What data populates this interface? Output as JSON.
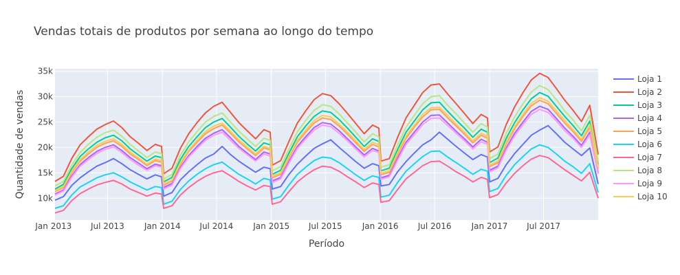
{
  "chart_data": {
    "type": "line",
    "title": "Vendas totais de produtos por semana ao longo do tempo",
    "xlabel": "Período",
    "ylabel": "Quantidade de vendas",
    "x_range": [
      "2013-01-06",
      "2017-12-31"
    ],
    "ylim": [
      5700,
      35500
    ],
    "x_ticks": [
      {
        "label": "Jan 2013",
        "date": "2013-01-01"
      },
      {
        "label": "Jul 2013",
        "date": "2013-07-01"
      },
      {
        "label": "Jan 2014",
        "date": "2014-01-01"
      },
      {
        "label": "Jul 2014",
        "date": "2014-07-01"
      },
      {
        "label": "Jan 2015",
        "date": "2015-01-01"
      },
      {
        "label": "Jul 2015",
        "date": "2015-07-01"
      },
      {
        "label": "Jan 2016",
        "date": "2016-01-01"
      },
      {
        "label": "Jul 2016",
        "date": "2016-07-01"
      },
      {
        "label": "Jan 2017",
        "date": "2017-01-01"
      },
      {
        "label": "Jul 2017",
        "date": "2017-07-01"
      }
    ],
    "y_ticks": [
      {
        "label": "10k",
        "value": 10000
      },
      {
        "label": "15k",
        "value": 15000
      },
      {
        "label": "20k",
        "value": 20000
      },
      {
        "label": "25k",
        "value": 25000
      },
      {
        "label": "30k",
        "value": 30000
      },
      {
        "label": "35k",
        "value": 35000
      }
    ],
    "grid": true,
    "legend_position": "right",
    "x_frequency": "weekly",
    "x": [
      "2013-01-06",
      "2013-02-03",
      "2013-03-03",
      "2013-03-31",
      "2013-04-28",
      "2013-05-26",
      "2013-06-23",
      "2013-07-21",
      "2013-08-18",
      "2013-09-15",
      "2013-10-13",
      "2013-11-10",
      "2013-12-08",
      "2013-12-29",
      "2014-01-05",
      "2014-02-02",
      "2014-03-02",
      "2014-03-30",
      "2014-04-27",
      "2014-05-25",
      "2014-06-22",
      "2014-07-20",
      "2014-08-17",
      "2014-09-14",
      "2014-10-12",
      "2014-11-09",
      "2014-12-07",
      "2014-12-28",
      "2015-01-04",
      "2015-02-01",
      "2015-03-01",
      "2015-03-29",
      "2015-04-26",
      "2015-05-24",
      "2015-06-21",
      "2015-07-19",
      "2015-08-16",
      "2015-09-13",
      "2015-10-11",
      "2015-11-08",
      "2015-12-06",
      "2015-12-27",
      "2016-01-03",
      "2016-01-31",
      "2016-02-28",
      "2016-03-27",
      "2016-04-24",
      "2016-05-22",
      "2016-06-19",
      "2016-07-17",
      "2016-08-14",
      "2016-09-11",
      "2016-10-09",
      "2016-11-06",
      "2016-12-04",
      "2016-12-25",
      "2017-01-01",
      "2017-01-29",
      "2017-02-26",
      "2017-03-26",
      "2017-04-23",
      "2017-05-21",
      "2017-06-18",
      "2017-07-16",
      "2017-08-13",
      "2017-09-10",
      "2017-10-08",
      "2017-11-05",
      "2017-12-03",
      "2017-12-31"
    ],
    "series": [
      {
        "name": "Loja 1",
        "color": "#636efa",
        "values": [
          9600,
          10300,
          12500,
          14000,
          15200,
          16300,
          17000,
          17800,
          16800,
          15600,
          14700,
          13800,
          14600,
          14200,
          10400,
          11100,
          13600,
          15200,
          16600,
          17900,
          18700,
          20200,
          18600,
          17300,
          16200,
          15100,
          16100,
          15800,
          11800,
          12300,
          14700,
          16700,
          18300,
          19800,
          20700,
          21500,
          20000,
          18600,
          17200,
          15900,
          16800,
          16400,
          12400,
          12700,
          15200,
          17200,
          18900,
          20500,
          21500,
          23000,
          21600,
          20200,
          18900,
          17600,
          18600,
          18100,
          13200,
          13900,
          16600,
          18800,
          20600,
          22400,
          23400,
          24300,
          22700,
          21000,
          19700,
          18400,
          19900,
          12800
        ]
      },
      {
        "name": "Loja 2",
        "color": "#ef553b",
        "values": [
          13300,
          14300,
          17800,
          20500,
          22100,
          23600,
          24500,
          25200,
          23900,
          22100,
          20800,
          19400,
          20600,
          20200,
          14800,
          15900,
          19800,
          22700,
          24900,
          26800,
          28100,
          28900,
          26900,
          24900,
          23300,
          21700,
          23500,
          23000,
          16500,
          17400,
          21200,
          24800,
          27200,
          29400,
          30600,
          30200,
          28600,
          26700,
          24700,
          22700,
          24400,
          23800,
          17300,
          17800,
          22000,
          25800,
          28300,
          30800,
          32300,
          32500,
          30500,
          28600,
          26700,
          24700,
          26500,
          25800,
          19100,
          20100,
          24500,
          28000,
          30800,
          33300,
          34600,
          33800,
          31600,
          29300,
          27300,
          25100,
          28300,
          18600
        ]
      },
      {
        "name": "Loja 3",
        "color": "#00cc96",
        "values": [
          11800,
          12700,
          15800,
          18200,
          19700,
          21000,
          21900,
          22400,
          21300,
          19700,
          18500,
          17300,
          18300,
          18000,
          13200,
          14100,
          17600,
          20200,
          22100,
          23900,
          25000,
          25700,
          24000,
          22200,
          20700,
          19300,
          20900,
          20500,
          14700,
          15500,
          18900,
          22100,
          24200,
          26100,
          27200,
          26900,
          25500,
          23800,
          22000,
          20200,
          21700,
          21200,
          15400,
          15900,
          19600,
          23000,
          25200,
          27400,
          28800,
          28900,
          27100,
          25400,
          23800,
          22000,
          23600,
          23000,
          17000,
          17900,
          21800,
          24900,
          27400,
          29600,
          30800,
          30100,
          28100,
          26100,
          24300,
          22300,
          25200,
          16600
        ]
      },
      {
        "name": "Loja 4",
        "color": "#ab63fa",
        "values": [
          10800,
          11600,
          14400,
          16600,
          18000,
          19200,
          20000,
          20500,
          19400,
          18000,
          16900,
          15800,
          16700,
          16400,
          12100,
          12900,
          16100,
          18400,
          20200,
          21800,
          22800,
          23500,
          21900,
          20200,
          18900,
          17600,
          19100,
          18700,
          13400,
          14100,
          17300,
          20200,
          22100,
          23900,
          24900,
          24600,
          23300,
          21700,
          20100,
          18500,
          19800,
          19300,
          14000,
          14500,
          17900,
          21000,
          23000,
          25000,
          26300,
          26400,
          24800,
          23200,
          21700,
          20100,
          21600,
          21000,
          15500,
          16300,
          19900,
          22800,
          25000,
          27100,
          28100,
          27500,
          25700,
          23800,
          22200,
          20400,
          23000,
          15100
        ]
      },
      {
        "name": "Loja 5",
        "color": "#ffa15a",
        "values": [
          11300,
          12100,
          15000,
          17300,
          18700,
          20000,
          20800,
          21300,
          20200,
          18700,
          17600,
          16400,
          17400,
          17100,
          12500,
          13400,
          16700,
          19200,
          21000,
          22700,
          23700,
          24400,
          22800,
          21100,
          19700,
          18400,
          19900,
          19500,
          14000,
          14700,
          18000,
          21000,
          23000,
          24800,
          25800,
          25500,
          24200,
          22600,
          20900,
          19200,
          20600,
          20100,
          14600,
          15100,
          18600,
          21800,
          24000,
          26000,
          27400,
          27500,
          25800,
          24200,
          22600,
          20900,
          22400,
          21800,
          16200,
          17000,
          20700,
          23700,
          26100,
          28200,
          29300,
          28600,
          26700,
          24800,
          23100,
          21200,
          24000,
          15800
        ]
      },
      {
        "name": "Loja 6",
        "color": "#19d3f3",
        "values": [
          8000,
          8500,
          10600,
          12200,
          13100,
          14000,
          14600,
          15000,
          14200,
          13200,
          12400,
          11600,
          12300,
          12100,
          8800,
          9400,
          11700,
          13400,
          14700,
          15800,
          16600,
          17100,
          15900,
          14700,
          13800,
          12800,
          13900,
          13600,
          9800,
          10300,
          12600,
          14700,
          16100,
          17400,
          18100,
          17900,
          17000,
          15800,
          14600,
          13500,
          14400,
          14100,
          10200,
          10600,
          13100,
          15300,
          16800,
          18200,
          19200,
          19300,
          18100,
          17000,
          15900,
          14700,
          15700,
          15300,
          11300,
          11900,
          14500,
          16600,
          18200,
          19700,
          20500,
          20000,
          18700,
          17300,
          16200,
          14900,
          16800,
          11100
        ]
      },
      {
        "name": "Loja 7",
        "color": "#ff6692",
        "values": [
          7100,
          7600,
          9500,
          10900,
          11800,
          12600,
          13100,
          13500,
          12800,
          11800,
          11100,
          10400,
          11000,
          10800,
          8000,
          8500,
          10600,
          12100,
          13300,
          14300,
          15000,
          15400,
          14400,
          13300,
          12400,
          11600,
          12500,
          12300,
          8800,
          9300,
          11300,
          13200,
          14500,
          15600,
          16300,
          16100,
          15300,
          14200,
          13200,
          12100,
          13000,
          12700,
          9200,
          9500,
          11700,
          13800,
          15100,
          16400,
          17200,
          17300,
          16300,
          15200,
          14300,
          13200,
          14100,
          13700,
          10100,
          10700,
          13000,
          14900,
          16400,
          17700,
          18400,
          18000,
          16800,
          15600,
          14500,
          13400,
          15100,
          10000
        ]
      },
      {
        "name": "Loja 8",
        "color": "#b6e880",
        "values": [
          12400,
          13300,
          16500,
          19000,
          20600,
          22000,
          22900,
          23400,
          22200,
          20600,
          19300,
          18000,
          19100,
          18800,
          13800,
          14700,
          18400,
          21100,
          23100,
          25000,
          26100,
          26800,
          25000,
          23200,
          21700,
          20200,
          21800,
          21400,
          15400,
          16200,
          19700,
          23100,
          25300,
          27300,
          28400,
          28100,
          26600,
          24800,
          23000,
          21100,
          22700,
          22100,
          16100,
          16600,
          20500,
          24000,
          26300,
          28600,
          30000,
          30200,
          28300,
          26600,
          24800,
          23000,
          24700,
          24000,
          17800,
          18700,
          22800,
          26000,
          28600,
          30900,
          32200,
          31400,
          29400,
          27200,
          25400,
          23300,
          26300,
          17300
        ]
      },
      {
        "name": "Loja 9",
        "color": "#ff97ff",
        "values": [
          10600,
          11400,
          14100,
          16300,
          17600,
          18800,
          19600,
          20100,
          19000,
          17600,
          16500,
          15500,
          16400,
          16100,
          11800,
          12600,
          15800,
          18100,
          19800,
          21400,
          22400,
          23000,
          21400,
          19800,
          18600,
          17300,
          18700,
          18300,
          13100,
          13800,
          16900,
          19800,
          21700,
          23400,
          24400,
          24100,
          22800,
          21300,
          19700,
          18100,
          19400,
          19000,
          13700,
          14200,
          17500,
          20600,
          22500,
          24500,
          25700,
          25800,
          24300,
          22800,
          21300,
          19700,
          21100,
          20600,
          15200,
          16000,
          19500,
          22300,
          24500,
          26500,
          27500,
          26900,
          25200,
          23300,
          21800,
          20000,
          22500,
          14800
        ]
      },
      {
        "name": "Loja 10",
        "color": "#fecb52",
        "values": [
          11500,
          12300,
          15300,
          17600,
          19100,
          20400,
          21200,
          21700,
          20600,
          19100,
          17900,
          16700,
          17700,
          17400,
          12800,
          13600,
          17000,
          19500,
          21400,
          23100,
          24200,
          24800,
          23200,
          21500,
          20100,
          18700,
          20200,
          19800,
          14300,
          15000,
          18300,
          21400,
          23400,
          25300,
          26300,
          26000,
          24600,
          23000,
          21300,
          19600,
          21000,
          20500,
          14900,
          15400,
          19000,
          22200,
          24400,
          26500,
          27800,
          27900,
          26300,
          24600,
          23000,
          21300,
          22800,
          22200,
          16500,
          17300,
          21100,
          24100,
          26500,
          28700,
          29800,
          29100,
          27200,
          25300,
          23500,
          21600,
          24400,
          16100
        ]
      }
    ]
  }
}
